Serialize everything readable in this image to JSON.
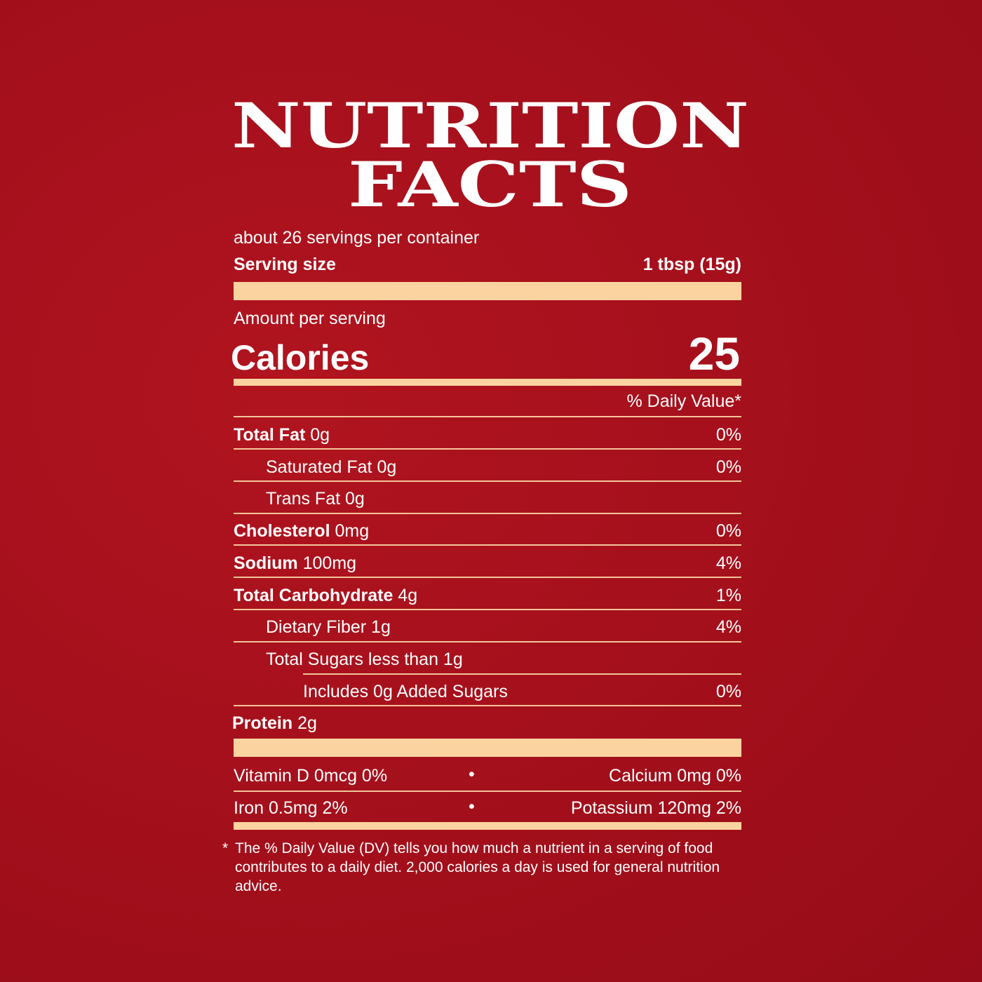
{
  "colors": {
    "background": "#a8101e",
    "accent": "#fbd3a0",
    "text": "#ffffff"
  },
  "title": {
    "line1": "NUTRITION",
    "line2": "FACTS"
  },
  "servings": "about 26 servings per container",
  "serving_size": {
    "label": "Serving size",
    "value": "1 tbsp (15g)"
  },
  "amount_per_serving": "Amount per serving",
  "calories": {
    "label": "Calories",
    "value": "25"
  },
  "dv_header": "% Daily Value*",
  "nutrients": [
    {
      "name": "Total Fat",
      "amount": "0g",
      "dv": "0%"
    },
    {
      "name": "Saturated Fat",
      "amount": "0g",
      "dv": "0%"
    },
    {
      "name": "Trans Fat",
      "amount": "0g",
      "dv": ""
    },
    {
      "name": "Cholesterol",
      "amount": "0mg",
      "dv": "0%"
    },
    {
      "name": "Sodium",
      "amount": "100mg",
      "dv": "4%"
    },
    {
      "name": "Total Carbohydrate",
      "amount": "4g",
      "dv": "1%"
    },
    {
      "name": "Dietary Fiber",
      "amount": "1g",
      "dv": "4%"
    },
    {
      "name": "Total Sugars",
      "amount": "less than 1g",
      "dv": ""
    },
    {
      "name": "Includes 0g Added Sugars",
      "amount": "",
      "dv": "0%"
    },
    {
      "name": "Protein",
      "amount": "2g",
      "dv": ""
    }
  ],
  "vitamins": [
    {
      "left": "Vitamin D 0mcg 0%",
      "right": "Calcium 0mg 0%"
    },
    {
      "left": "Iron 0.5mg 2%",
      "right": "Potassium 120mg 2%"
    }
  ],
  "bullet": "•",
  "footnote_star": "*",
  "footnote": "The % Daily Value (DV) tells you how much a nutrient in a serving of food contributes to a daily diet. 2,000 calories a day is used for general nutrition advice."
}
